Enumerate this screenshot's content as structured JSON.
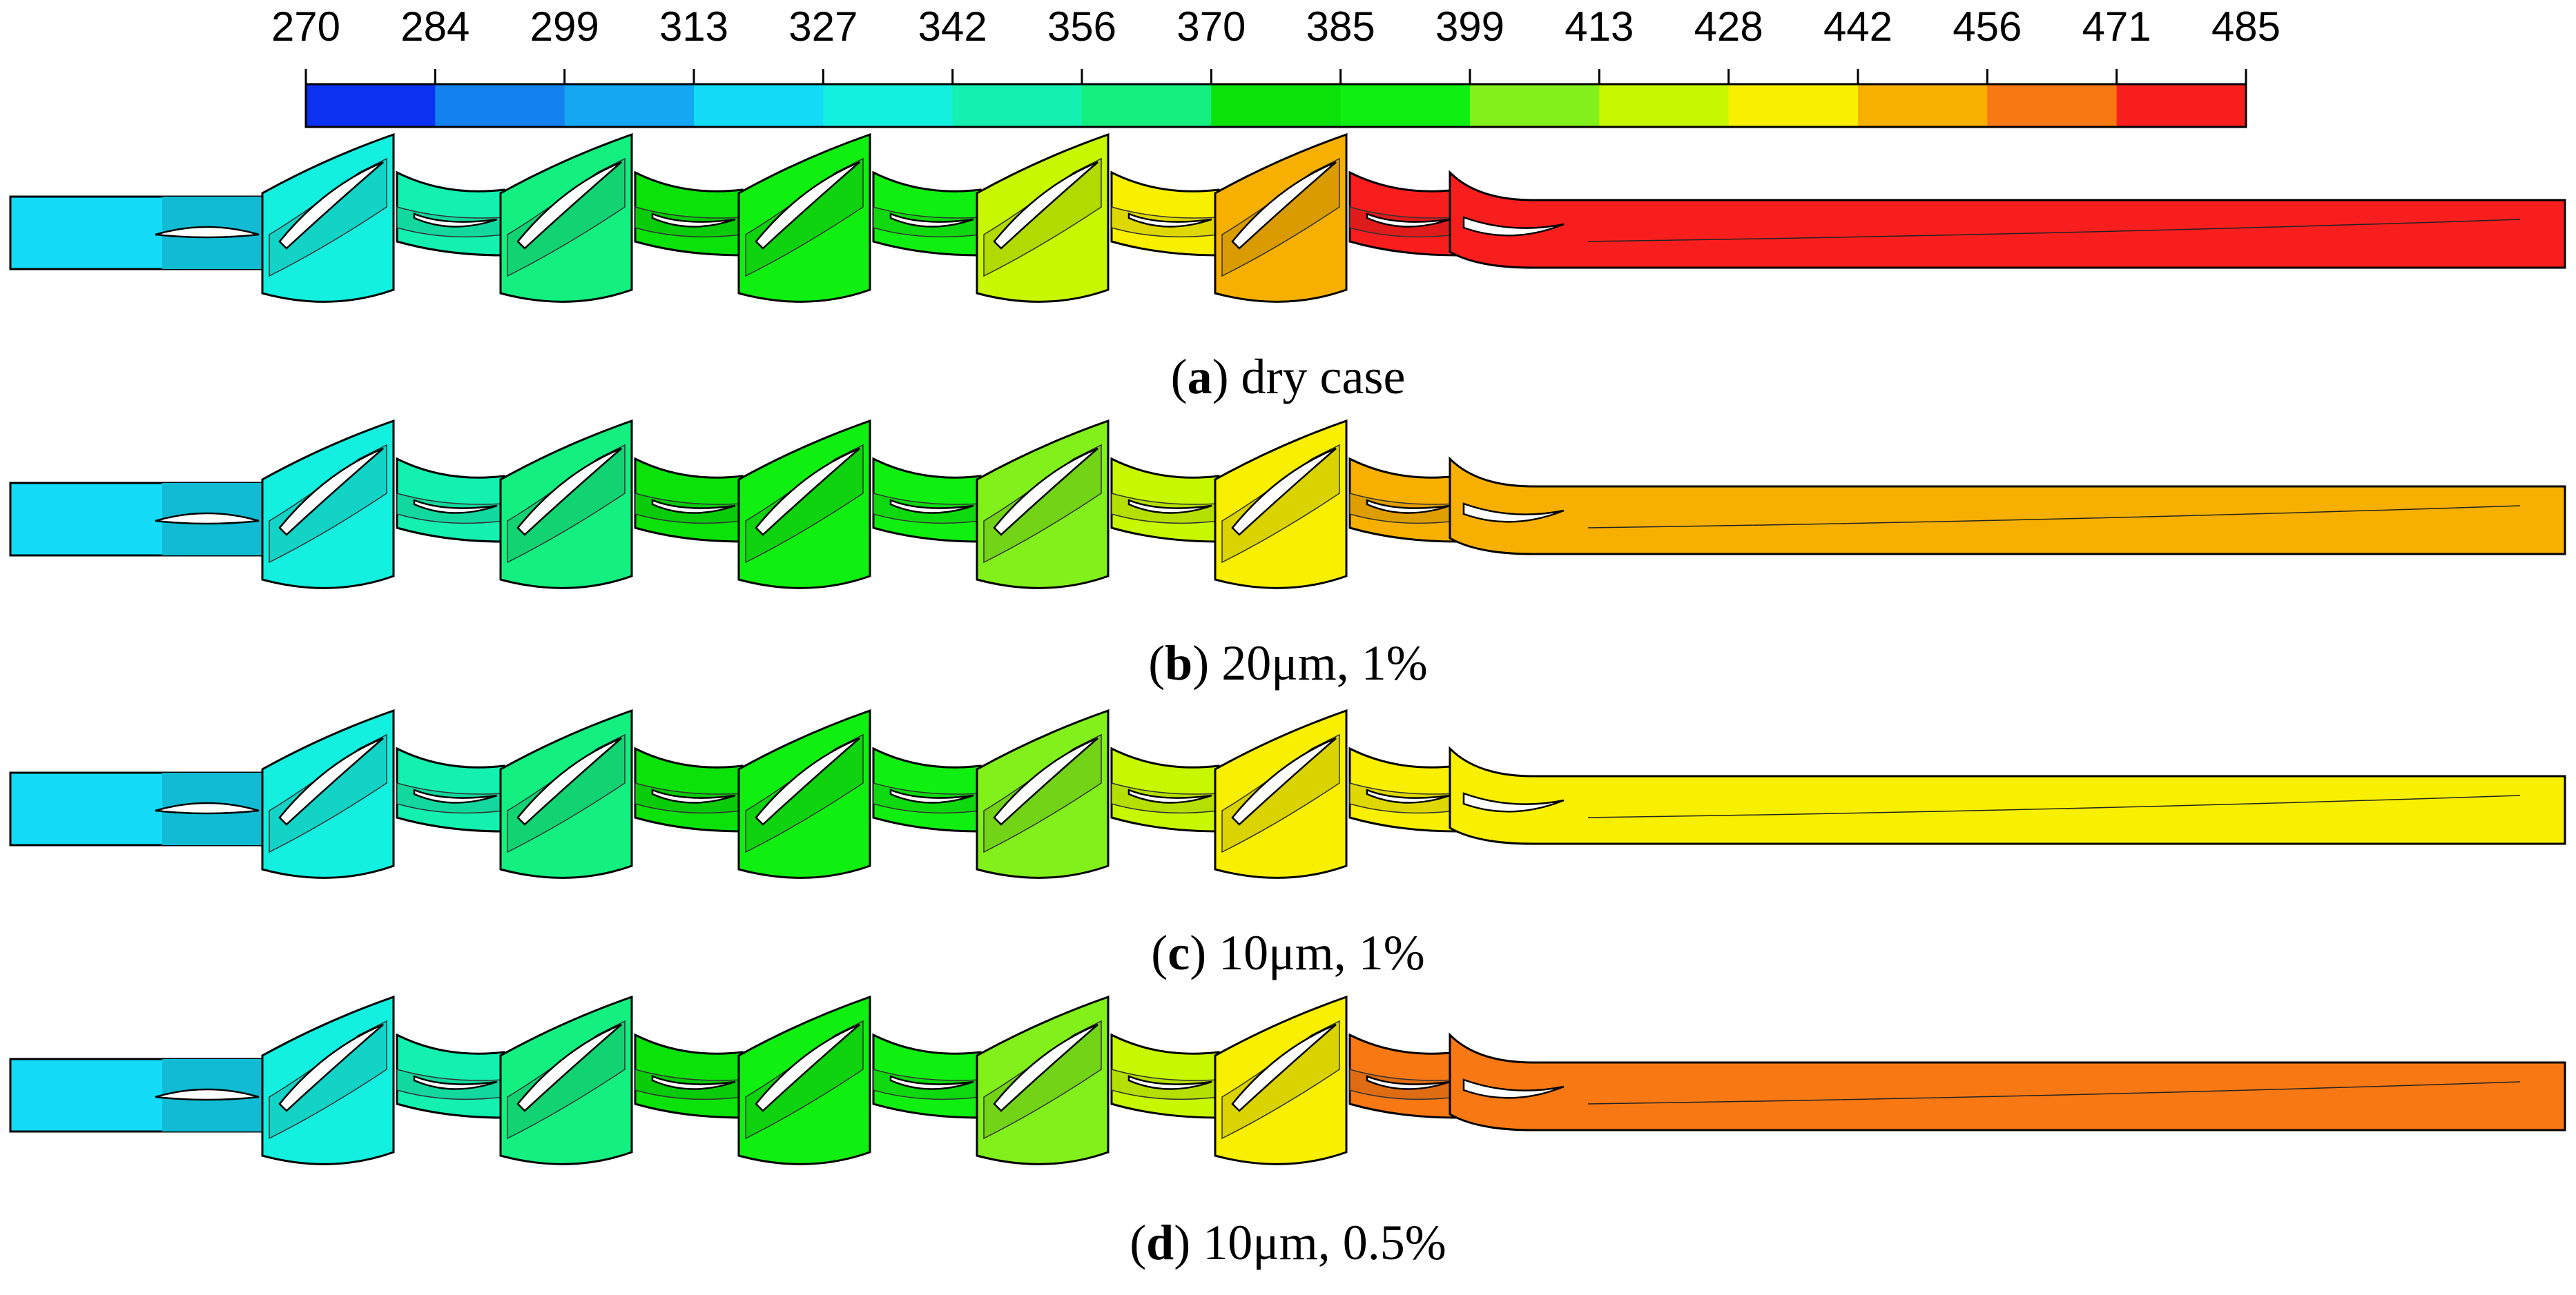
{
  "legend": {
    "ticks": [
      "270",
      "284",
      "299",
      "313",
      "327",
      "342",
      "356",
      "370",
      "385",
      "399",
      "413",
      "428",
      "442",
      "456",
      "471",
      "485"
    ],
    "colors": [
      "#0a32f0",
      "#1482ee",
      "#14a8f2",
      "#14dcf8",
      "#14f0e0",
      "#14f0b0",
      "#14f080",
      "#0ae20a",
      "#10f010",
      "#82f01a",
      "#c8f800",
      "#f8f000",
      "#f8b000",
      "#f87814",
      "#f81e1e"
    ]
  },
  "cases": [
    {
      "letter": "a",
      "text": " dry case",
      "colors": [
        3,
        4,
        5,
        6,
        7,
        8,
        8,
        10,
        11,
        12,
        14
      ]
    },
    {
      "letter": "b",
      "text": " 20μm, 1%",
      "colors": [
        3,
        4,
        5,
        6,
        7,
        8,
        8,
        9,
        10,
        11,
        12
      ]
    },
    {
      "letter": "c",
      "text": " 10μm, 1%",
      "colors": [
        3,
        4,
        5,
        6,
        7,
        8,
        8,
        9,
        10,
        11,
        11
      ]
    },
    {
      "letter": "d",
      "text": " 10μm, 0.5%",
      "colors": [
        3,
        4,
        5,
        6,
        7,
        8,
        8,
        9,
        10,
        11,
        13
      ]
    }
  ]
}
